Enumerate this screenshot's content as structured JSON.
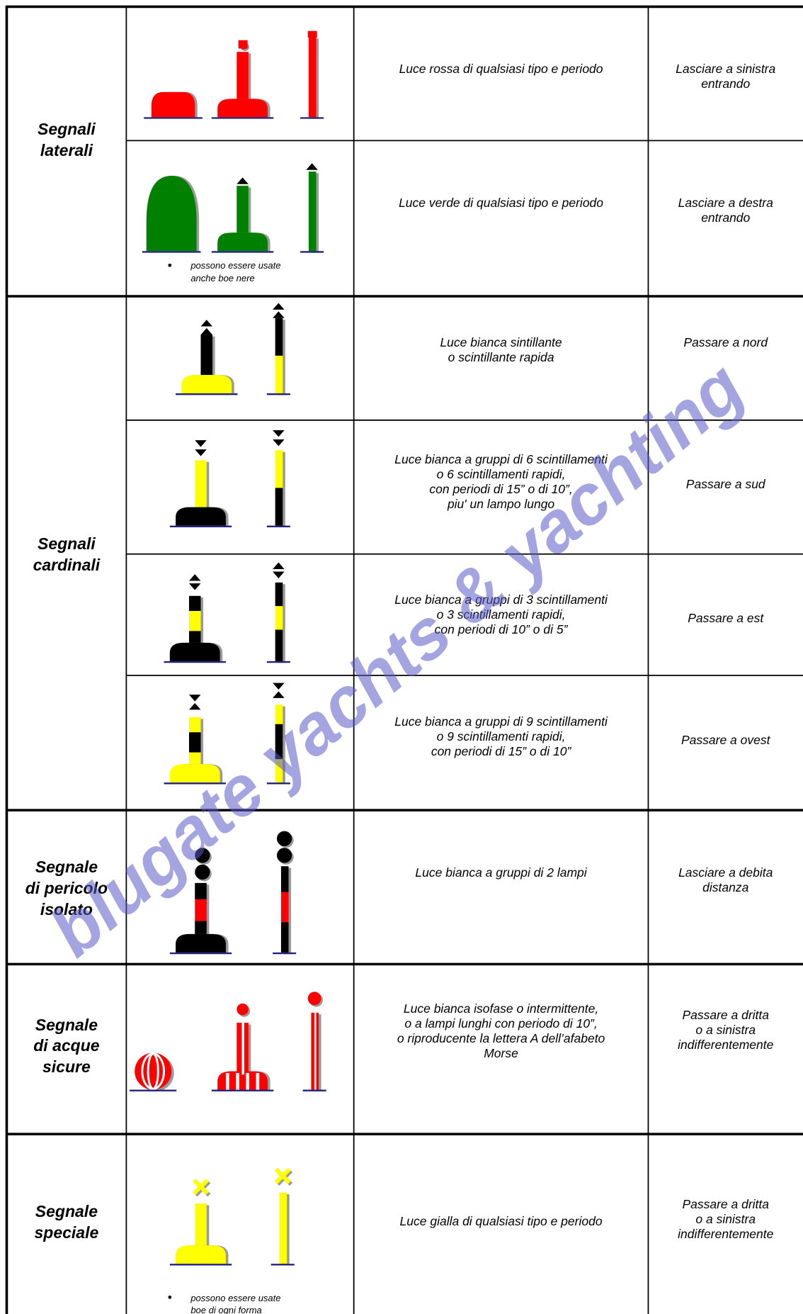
{
  "table": {
    "groups": [
      {
        "name": "Segnali\nlaterali",
        "rows": [
          {
            "light": "Luce rossa di qualsiasi tipo e periodo",
            "action": "Lasciare a sinistra\nentrando"
          },
          {
            "light": "Luce verde di qualsiasi tipo e periodo",
            "action": "Lasciare a destra\nentrando",
            "note": "possono essere usate\nanche boe  nere"
          }
        ]
      },
      {
        "name": "Segnali\ncardinali",
        "rows": [
          {
            "light": "Luce bianca sintillante\no scintillante rapida",
            "action": "Passare a nord"
          },
          {
            "light": "Luce bianca a gruppi di 6 scintillamenti\no 6 scintillamenti rapidi,\ncon periodi di 15” o di 10”,\npiu' un lampo lungo",
            "action": "Passare a sud"
          },
          {
            "light": "Luce bianca a gruppi di 3 scintillamenti\no 3 scintillamenti rapidi,\ncon periodi di 10” o di 5”",
            "action": "Passare a est"
          },
          {
            "light": "Luce bianca a gruppi di 9 scintillamenti\no 9 scintillamenti rapidi,\ncon periodi di 15” o di 10”",
            "action": "Passare a ovest"
          }
        ]
      },
      {
        "name": "Segnale\ndi pericolo\nisolato",
        "rows": [
          {
            "light": "Luce bianca a gruppi di 2 lampi",
            "action": "Lasciare a debita\ndistanza"
          }
        ]
      },
      {
        "name": "Segnale\ndi acque\nsicure",
        "rows": [
          {
            "light": "Luce bianca isofase o intermittente,\no a lampi lunghi con periodo di 10”,\no riproducente la lettera A dell’afabeto\nMorse",
            "action": "Passare a dritta\no a sinistra\nindifferentemente"
          }
        ]
      },
      {
        "name": "Segnale\nspeciale",
        "rows": [
          {
            "light": "Luce gialla di qualsiasi tipo e periodo",
            "action": "Passare a dritta\no a sinistra\nindifferentemente",
            "note": "possono essere usate\nboe  di ogni forma"
          }
        ]
      }
    ]
  },
  "watermark": "blugate yachts & yachting"
}
